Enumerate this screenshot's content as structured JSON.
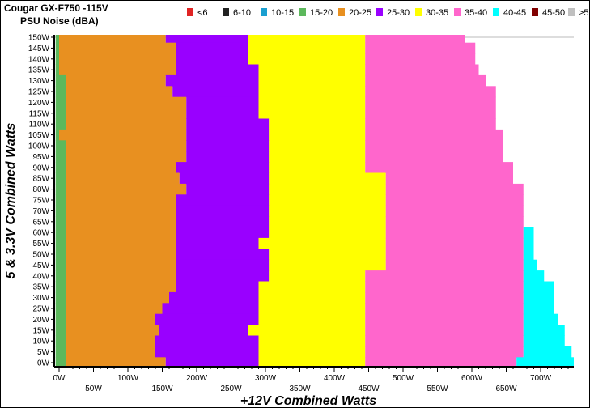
{
  "chart_data": {
    "type": "heatmap",
    "title": "Cougar GX-F750 -115V",
    "subtitle": "PSU Noise (dBA)",
    "xlabel": "+12V Combined Watts",
    "ylabel": "5 & 3.3V Combined Watts",
    "xlim": [
      -5,
      750
    ],
    "ylim": [
      0,
      150
    ],
    "x_ticks": [
      0,
      50,
      100,
      150,
      200,
      250,
      300,
      350,
      400,
      450,
      500,
      550,
      600,
      650,
      700
    ],
    "y_ticks": [
      0,
      5,
      10,
      15,
      20,
      25,
      30,
      35,
      40,
      45,
      50,
      55,
      60,
      65,
      70,
      75,
      80,
      85,
      90,
      95,
      100,
      105,
      110,
      115,
      120,
      125,
      130,
      135,
      140,
      145,
      150
    ],
    "legend": [
      {
        "label": "<6",
        "color": "#e02424"
      },
      {
        "label": "6-10",
        "color": "#222222"
      },
      {
        "label": "10-15",
        "color": "#1a9fd0"
      },
      {
        "label": "15-20",
        "color": "#5cb85c"
      },
      {
        "label": "20-25",
        "color": "#e89020"
      },
      {
        "label": "25-30",
        "color": "#9900ff"
      },
      {
        "label": "30-35",
        "color": "#ffff00"
      },
      {
        "label": "35-40",
        "color": "#ff66cc"
      },
      {
        "label": "40-45",
        "color": "#00ffff"
      },
      {
        "label": "45-50",
        "color": "#800000"
      },
      {
        "label": ">50",
        "color": "#c0c0c0"
      }
    ],
    "legend_placement": "top",
    "row_bands": [
      "15-20",
      "20-25",
      "25-30",
      "30-35",
      "35-40",
      "40-45"
    ],
    "rows": [
      {
        "y": 150,
        "upper_x": [
          0,
          155,
          275,
          445,
          590,
          590
        ]
      },
      {
        "y": 145,
        "upper_x": [
          0,
          170,
          275,
          445,
          605,
          605
        ]
      },
      {
        "y": 140,
        "upper_x": [
          0,
          170,
          275,
          445,
          605,
          605
        ]
      },
      {
        "y": 135,
        "upper_x": [
          0,
          170,
          290,
          445,
          610,
          610
        ]
      },
      {
        "y": 130,
        "upper_x": [
          10,
          155,
          290,
          445,
          620,
          620
        ]
      },
      {
        "y": 125,
        "upper_x": [
          10,
          165,
          290,
          445,
          635,
          635
        ]
      },
      {
        "y": 120,
        "upper_x": [
          10,
          185,
          290,
          445,
          635,
          635
        ]
      },
      {
        "y": 115,
        "upper_x": [
          10,
          185,
          290,
          445,
          635,
          635
        ]
      },
      {
        "y": 110,
        "upper_x": [
          10,
          185,
          305,
          445,
          635,
          635
        ]
      },
      {
        "y": 105,
        "upper_x": [
          0,
          185,
          305,
          445,
          645,
          645
        ]
      },
      {
        "y": 100,
        "upper_x": [
          10,
          185,
          305,
          445,
          645,
          645
        ]
      },
      {
        "y": 95,
        "upper_x": [
          10,
          185,
          305,
          445,
          645,
          645
        ]
      },
      {
        "y": 90,
        "upper_x": [
          10,
          170,
          305,
          445,
          660,
          660
        ]
      },
      {
        "y": 85,
        "upper_x": [
          10,
          175,
          305,
          475,
          660,
          660
        ]
      },
      {
        "y": 80,
        "upper_x": [
          10,
          185,
          305,
          475,
          675,
          675
        ]
      },
      {
        "y": 75,
        "upper_x": [
          10,
          170,
          305,
          475,
          675,
          675
        ]
      },
      {
        "y": 70,
        "upper_x": [
          10,
          170,
          305,
          475,
          675,
          675
        ]
      },
      {
        "y": 65,
        "upper_x": [
          10,
          170,
          305,
          475,
          675,
          675
        ]
      },
      {
        "y": 60,
        "upper_x": [
          10,
          170,
          305,
          475,
          675,
          690
        ]
      },
      {
        "y": 55,
        "upper_x": [
          10,
          170,
          290,
          475,
          675,
          690
        ]
      },
      {
        "y": 50,
        "upper_x": [
          10,
          170,
          305,
          475,
          675,
          690
        ]
      },
      {
        "y": 45,
        "upper_x": [
          10,
          170,
          305,
          475,
          675,
          695
        ]
      },
      {
        "y": 40,
        "upper_x": [
          10,
          170,
          305,
          445,
          675,
          705
        ]
      },
      {
        "y": 35,
        "upper_x": [
          10,
          170,
          290,
          445,
          675,
          720
        ]
      },
      {
        "y": 30,
        "upper_x": [
          10,
          160,
          290,
          445,
          675,
          720
        ]
      },
      {
        "y": 25,
        "upper_x": [
          10,
          150,
          290,
          445,
          675,
          720
        ]
      },
      {
        "y": 20,
        "upper_x": [
          10,
          140,
          290,
          445,
          675,
          725
        ]
      },
      {
        "y": 15,
        "upper_x": [
          10,
          145,
          275,
          445,
          675,
          735
        ]
      },
      {
        "y": 10,
        "upper_x": [
          10,
          140,
          290,
          445,
          675,
          735
        ]
      },
      {
        "y": 5,
        "upper_x": [
          10,
          140,
          290,
          445,
          675,
          745
        ]
      },
      {
        "y": 0,
        "upper_x": [
          10,
          155,
          290,
          445,
          665,
          750
        ]
      }
    ]
  }
}
